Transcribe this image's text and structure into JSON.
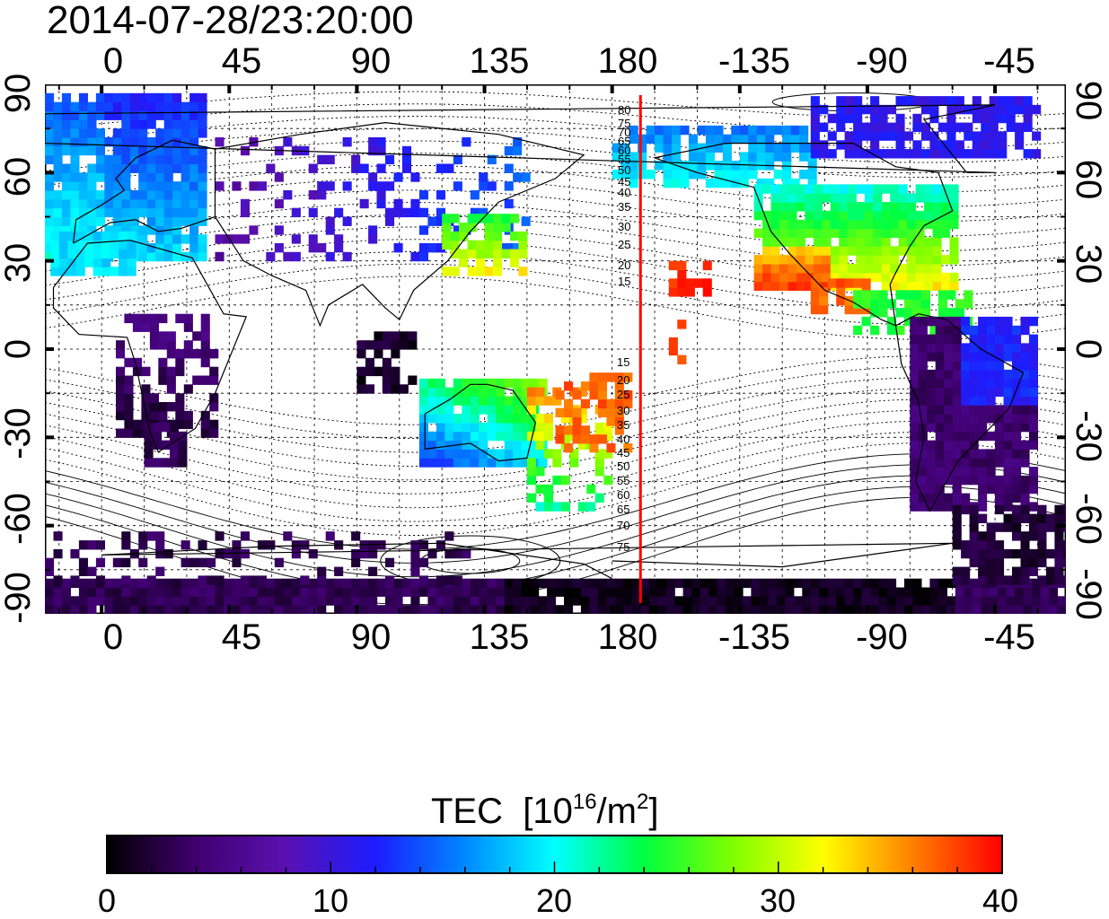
{
  "title": "2014-07-28/23:20:00",
  "axes": {
    "top_ticks": [
      "0",
      "45",
      "90",
      "135",
      "180",
      "-135",
      "-90",
      "-45"
    ],
    "bottom_ticks": [
      "0",
      "45",
      "90",
      "135",
      "180",
      "-135",
      "-90",
      "-45"
    ],
    "left_ticks": [
      "90",
      "60",
      "30",
      "0",
      "-30",
      "-60",
      "-90"
    ],
    "right_ticks": [
      "90",
      "60",
      "30",
      "0",
      "-30",
      "-60",
      "-90"
    ],
    "lon_range": [
      -20,
      340
    ],
    "lat_range": [
      -90,
      90
    ]
  },
  "contours": {
    "north_labels": [
      "80",
      "75",
      "70",
      "65",
      "60",
      "55",
      "50",
      "45",
      "40",
      "35",
      "30",
      "25",
      "20",
      "15"
    ],
    "south_labels": [
      "15",
      "20",
      "25",
      "30",
      "35",
      "40",
      "45",
      "50",
      "55",
      "60",
      "65",
      "70",
      "75"
    ]
  },
  "terminator_line": {
    "color": "#ff0000",
    "lon": 190
  },
  "colorbar": {
    "title_prefix": "TEC",
    "title_units": "[10",
    "title_exp1": "16",
    "title_mid": "/m",
    "title_exp2": "2",
    "title_end": "]",
    "tick_labels": [
      "0",
      "10",
      "20",
      "30",
      "40"
    ],
    "range": [
      0,
      40
    ]
  },
  "colors": {
    "stops": [
      "#000000",
      "#400070",
      "#5a10b0",
      "#1c1cff",
      "#0088ff",
      "#00ffff",
      "#00ff40",
      "#80ff00",
      "#ffff00",
      "#ff8000",
      "#ff0000"
    ]
  }
}
